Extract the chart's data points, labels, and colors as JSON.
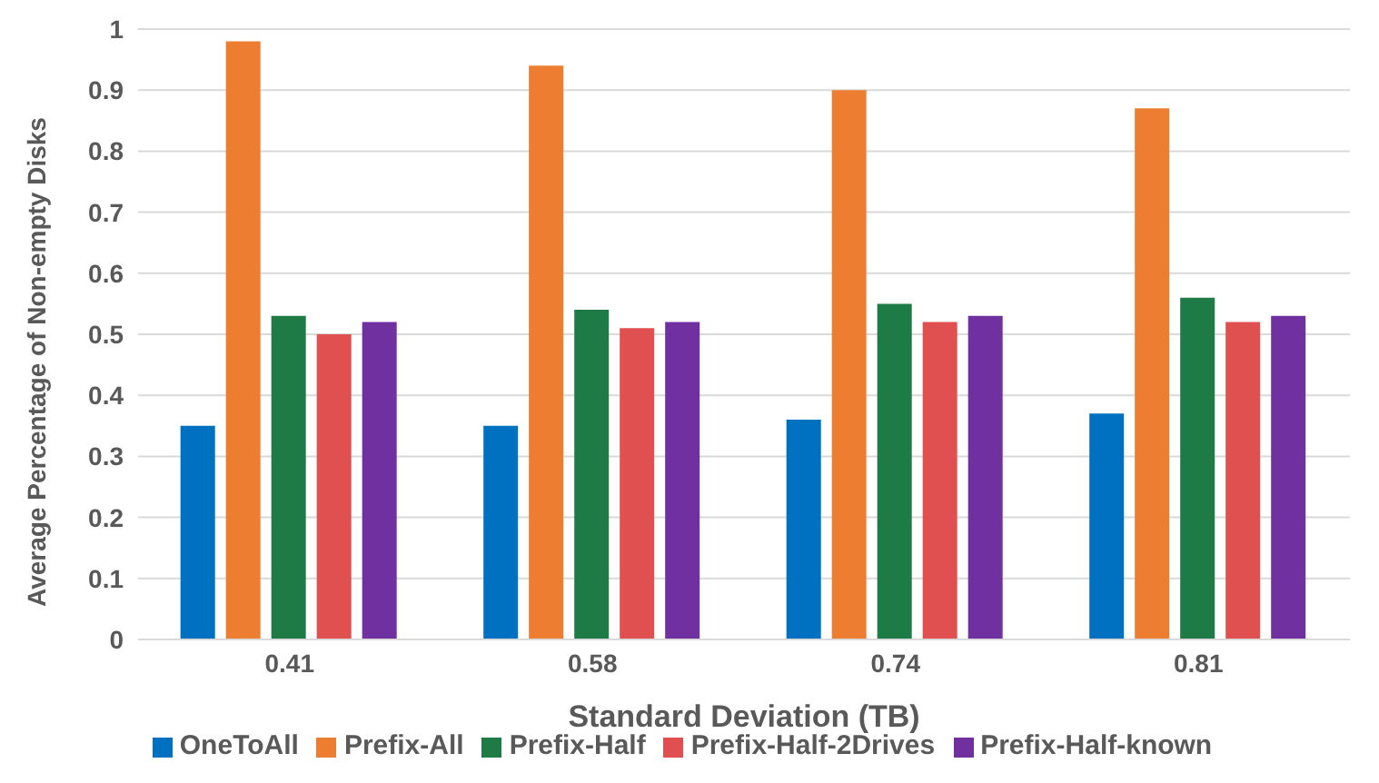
{
  "chart_data": {
    "type": "bar",
    "xlabel": "Standard Deviation (TB)",
    "ylabel": "Average Percentage of Non-empty Disks",
    "categories": [
      "0.41",
      "0.58",
      "0.74",
      "0.81"
    ],
    "series": [
      {
        "name": "OneToAll",
        "color": "#0070c0",
        "values": [
          0.35,
          0.35,
          0.36,
          0.37
        ]
      },
      {
        "name": "Prefix-All",
        "color": "#ed7d31",
        "values": [
          0.98,
          0.94,
          0.9,
          0.87
        ]
      },
      {
        "name": "Prefix-Half",
        "color": "#1e7b45",
        "values": [
          0.53,
          0.54,
          0.55,
          0.56
        ]
      },
      {
        "name": "Prefix-Half-2Drives",
        "color": "#e05050",
        "values": [
          0.5,
          0.51,
          0.52,
          0.52
        ]
      },
      {
        "name": "Prefix-Half-known",
        "color": "#7030a0",
        "values": [
          0.52,
          0.52,
          0.53,
          0.53
        ]
      }
    ],
    "ylim": [
      0,
      1
    ],
    "yticks": [
      0,
      {
        "value": 0.1,
        "label": "0.1"
      },
      {
        "value": 0.2,
        "label": "0.2"
      },
      {
        "value": 0.3,
        "label": "0.3"
      },
      {
        "value": 0.4,
        "label": "0.4"
      },
      {
        "value": 0.5,
        "label": "0.5"
      },
      {
        "value": 0.6,
        "label": "0.6"
      },
      {
        "value": 0.7,
        "label": "0.7"
      },
      {
        "value": 0.8,
        "label": "0.8"
      },
      {
        "value": 0.9,
        "label": "0.9"
      },
      1
    ],
    "grid": "y",
    "legend": "bottom"
  }
}
